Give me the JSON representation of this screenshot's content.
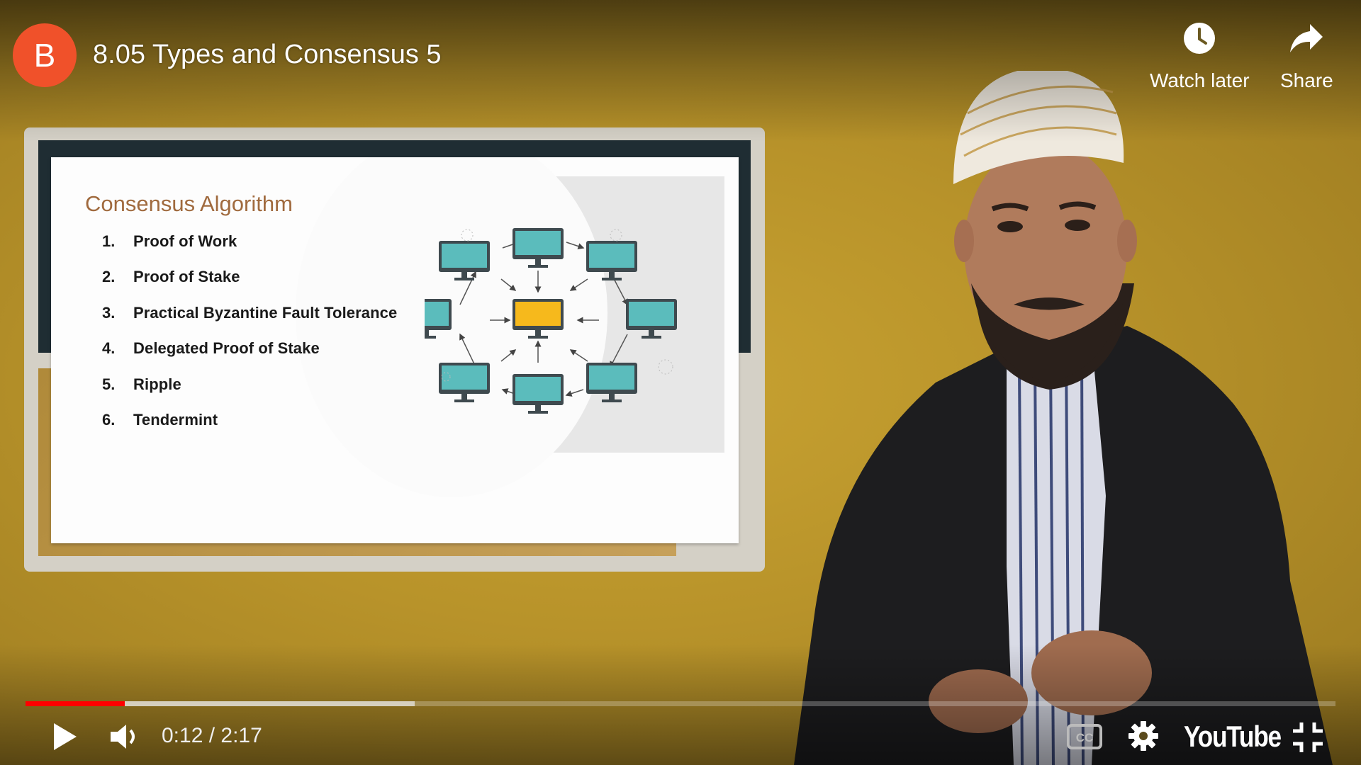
{
  "header": {
    "channel_initial": "B",
    "video_title": "8.05 Types and Consensus 5",
    "watch_later_label": "Watch later",
    "share_label": "Share"
  },
  "slide": {
    "title": "Consensus Algorithm",
    "items": [
      {
        "num": "1.",
        "text": "Proof of Work"
      },
      {
        "num": "2.",
        "text": "Proof of Stake"
      },
      {
        "num": "3.",
        "text": "Practical Byzantine Fault Tolerance"
      },
      {
        "num": "4.",
        "text": "Delegated Proof of Stake"
      },
      {
        "num": "5.",
        "text": "Ripple"
      },
      {
        "num": "6.",
        "text": "Tendermint"
      }
    ],
    "colors": {
      "monitor": "#5bbcbc",
      "center_monitor": "#f6b91c",
      "title": "#a06a3e"
    }
  },
  "controls": {
    "time_display": "0:12 / 2:17",
    "progress_played": 0.076,
    "progress_buffered": 0.297,
    "logo_text": "YouTube",
    "cc_label": "CC",
    "icons": {
      "play": "play-icon",
      "volume": "volume-icon",
      "settings": "gear-icon",
      "fullscreen_exit": "fullscreen-exit-icon",
      "watch_later": "clock-icon",
      "share": "share-arrow-icon"
    }
  },
  "colors": {
    "accent": "#ff0000",
    "background": "#b8932a",
    "avatar": "#f0512a"
  }
}
